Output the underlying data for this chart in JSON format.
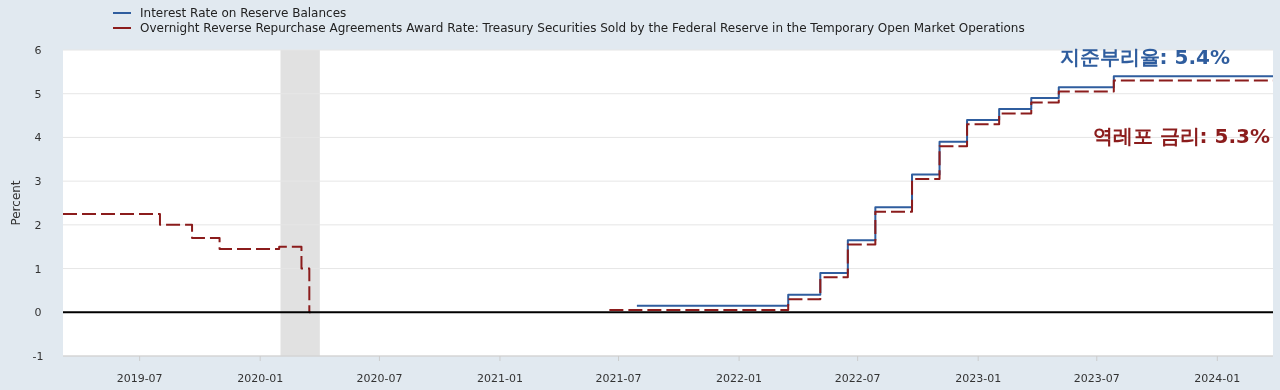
{
  "chart_data": {
    "type": "step",
    "ylabel": "Percent",
    "xlim": [
      "2019-03-06",
      "2024-03-26"
    ],
    "ylim": [
      -1,
      6
    ],
    "xticks": [
      "2019-07",
      "2020-01",
      "2020-07",
      "2021-01",
      "2021-07",
      "2022-01",
      "2022-07",
      "2023-01",
      "2023-07",
      "2024-01"
    ],
    "yticks": [
      -1,
      0,
      1,
      2,
      3,
      4,
      5,
      6
    ],
    "grid": "y",
    "legend": "top left",
    "bands": [
      {
        "axis": "x",
        "from": "2020-02-01",
        "to": "2020-04-01",
        "color": "#e1e1e1"
      }
    ],
    "ref_lines": [
      {
        "axis": "y",
        "value": 0,
        "color": "#000000"
      }
    ],
    "series": [
      {
        "name": "Interest Rate on Reserve Balances",
        "color": "#2f5d9e",
        "line_style": "solid",
        "x": [
          "2021-07-29",
          "2022-03-17",
          "2022-05-05",
          "2022-06-16",
          "2022-07-28",
          "2022-09-22",
          "2022-11-03",
          "2022-12-15",
          "2023-02-02",
          "2023-03-23",
          "2023-05-04",
          "2023-07-27",
          "2024-03-26"
        ],
        "values": [
          0.15,
          0.4,
          0.9,
          1.65,
          2.4,
          3.15,
          3.9,
          4.4,
          4.65,
          4.9,
          5.15,
          5.4,
          5.4
        ]
      },
      {
        "name": "Overnight Reverse Repurchase Agreements Award Rate: Treasury Securities Sold by the Federal Reserve in the Temporary Open Market Operations",
        "color": "#8b1c1c",
        "line_style": "dashed",
        "x": [
          "2019-03-06",
          "2019-08-01",
          "2019-09-19",
          "2019-10-31",
          "2020-01-30",
          "2020-03-04",
          "2020-03-16",
          "2020-03-18",
          "2021-06-17",
          "2022-03-17",
          "2022-05-05",
          "2022-06-16",
          "2022-07-28",
          "2022-09-22",
          "2022-11-03",
          "2022-12-15",
          "2023-02-02",
          "2023-03-23",
          "2023-05-04",
          "2023-07-27",
          "2024-03-26"
        ],
        "values": [
          2.25,
          2.0,
          1.7,
          1.45,
          1.5,
          1.0,
          0,
          null,
          0.05,
          0.3,
          0.8,
          1.55,
          2.3,
          3.05,
          3.8,
          4.3,
          4.55,
          4.8,
          5.05,
          5.3,
          5.3
        ]
      }
    ],
    "annotations": [
      "지준부리율: 5.4%",
      "역레포 금리: 5.3%"
    ]
  }
}
